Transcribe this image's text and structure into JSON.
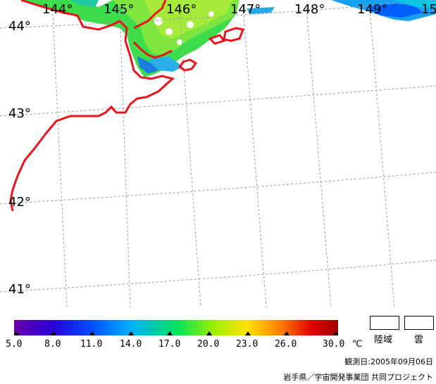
{
  "map": {
    "longitude_labels": [
      "144°",
      "145°",
      "146°",
      "147°",
      "148°",
      "149°",
      "15"
    ],
    "latitude_labels": [
      "44°",
      "43°",
      "42°",
      "41°"
    ],
    "colors": {
      "coastline": "#e8141c",
      "graticule": "#9a9a9a",
      "land": "#ffffff"
    }
  },
  "colorbar": {
    "tick_labels": [
      "5.0",
      "8.0",
      "11.0",
      "14.0",
      "17.0",
      "20.0",
      "23.0",
      "26.0",
      "30.0"
    ],
    "unit": "℃",
    "gradient_colors": [
      "#6a00a8",
      "#2a00d8",
      "#0050ff",
      "#00b0ff",
      "#00e060",
      "#a0f000",
      "#ffe000",
      "#ff8000",
      "#e00000",
      "#a00000"
    ]
  },
  "legend": {
    "land_label": "陸域",
    "cloud_label": "雲"
  },
  "footer": {
    "observation_date": "観測日:2005年09月06日",
    "credit": "岩手県／宇宙開発事業団 共同プロジェクト"
  }
}
